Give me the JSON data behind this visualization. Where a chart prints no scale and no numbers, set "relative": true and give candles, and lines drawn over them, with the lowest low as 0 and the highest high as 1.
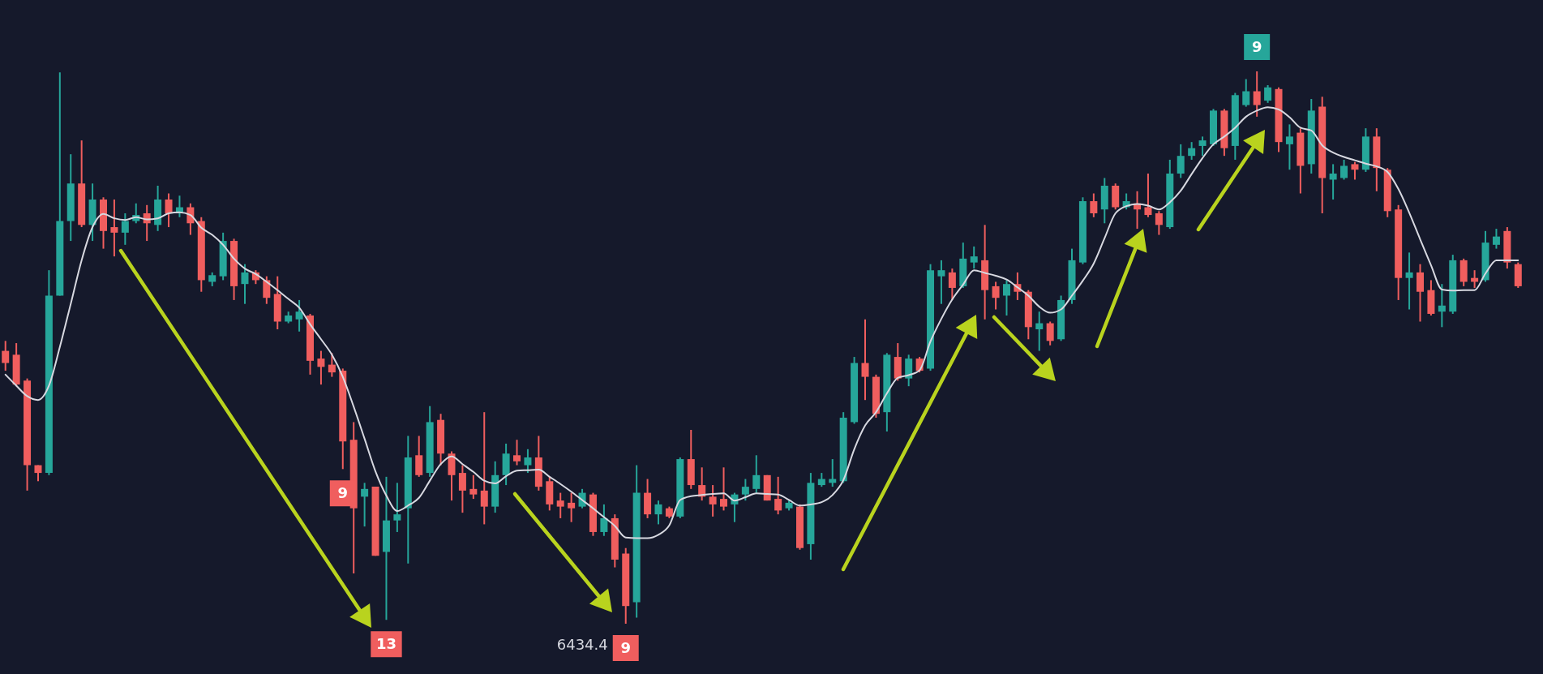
{
  "chart_data": {
    "type": "candlestick",
    "relative": true,
    "tick_labels": false,
    "categories": [
      null,
      null,
      null,
      null,
      null,
      null,
      null,
      null,
      null,
      null,
      null,
      null,
      null,
      null,
      null,
      null,
      null,
      null,
      null,
      null,
      null,
      null,
      null,
      null,
      null,
      null,
      null,
      null,
      null,
      null,
      null,
      null,
      null,
      null,
      null,
      null,
      null,
      null,
      null,
      null,
      null,
      null,
      null,
      null,
      null,
      null,
      null,
      null,
      null,
      null,
      null,
      null,
      null,
      null,
      null,
      null,
      null,
      null,
      null,
      null,
      null,
      null,
      null,
      null,
      null,
      null,
      null,
      null,
      null,
      null,
      null,
      null,
      null,
      null,
      null,
      null,
      null,
      null,
      null,
      null,
      null,
      null,
      null,
      null,
      null,
      null,
      null,
      null,
      null,
      null,
      null,
      null,
      null,
      null,
      null,
      null,
      null,
      null,
      null,
      null,
      null,
      null,
      null,
      null,
      null,
      null,
      null,
      null,
      null,
      null,
      null,
      null,
      null,
      null,
      null,
      null,
      null,
      null,
      null,
      null,
      null,
      null,
      null,
      null,
      null,
      null,
      null,
      null,
      null,
      null,
      null,
      null,
      null,
      null,
      null,
      null,
      null,
      null,
      null,
      null
    ],
    "ohlc": [
      [
        0.494,
        0.512,
        0.458,
        0.472
      ],
      [
        0.487,
        0.508,
        0.43,
        0.433
      ],
      [
        0.44,
        0.444,
        0.241,
        0.287
      ],
      [
        0.287,
        0.287,
        0.258,
        0.273
      ],
      [
        0.273,
        0.64,
        0.269,
        0.594
      ],
      [
        0.594,
        0.998,
        0.594,
        0.729
      ],
      [
        0.729,
        0.85,
        0.693,
        0.797
      ],
      [
        0.797,
        0.875,
        0.718,
        0.722
      ],
      [
        0.722,
        0.797,
        0.693,
        0.768
      ],
      [
        0.768,
        0.772,
        0.679,
        0.711
      ],
      [
        0.718,
        0.768,
        0.665,
        0.708
      ],
      [
        0.708,
        0.743,
        0.686,
        0.729
      ],
      [
        0.729,
        0.761,
        0.725,
        0.74
      ],
      [
        0.743,
        0.758,
        0.693,
        0.725
      ],
      [
        0.722,
        0.793,
        0.711,
        0.768
      ],
      [
        0.768,
        0.779,
        0.718,
        0.743
      ],
      [
        0.743,
        0.775,
        0.736,
        0.754
      ],
      [
        0.754,
        0.761,
        0.704,
        0.725
      ],
      [
        0.729,
        0.736,
        0.601,
        0.622
      ],
      [
        0.619,
        0.636,
        0.611,
        0.631
      ],
      [
        0.629,
        0.708,
        0.622,
        0.693
      ],
      [
        0.693,
        0.697,
        0.586,
        0.611
      ],
      [
        0.615,
        0.651,
        0.579,
        0.636
      ],
      [
        0.636,
        0.64,
        0.615,
        0.622
      ],
      [
        0.622,
        0.629,
        0.579,
        0.59
      ],
      [
        0.597,
        0.629,
        0.533,
        0.547
      ],
      [
        0.547,
        0.565,
        0.544,
        0.558
      ],
      [
        0.551,
        0.586,
        0.529,
        0.565
      ],
      [
        0.558,
        0.561,
        0.451,
        0.476
      ],
      [
        0.48,
        0.494,
        0.433,
        0.465
      ],
      [
        0.469,
        0.49,
        0.447,
        0.455
      ],
      [
        0.458,
        0.462,
        0.28,
        0.33
      ],
      [
        0.333,
        0.365,
        0.091,
        0.209
      ],
      [
        0.23,
        0.255,
        0.176,
        0.244
      ],
      [
        0.248,
        0.248,
        0.123,
        0.123
      ],
      [
        0.13,
        0.266,
        0.007,
        0.187
      ],
      [
        0.187,
        0.255,
        0.166,
        0.198
      ],
      [
        0.209,
        0.34,
        0.109,
        0.301
      ],
      [
        0.305,
        0.34,
        0.266,
        0.269
      ],
      [
        0.273,
        0.394,
        0.266,
        0.365
      ],
      [
        0.369,
        0.38,
        0.287,
        0.308
      ],
      [
        0.308,
        0.312,
        0.223,
        0.269
      ],
      [
        0.273,
        0.287,
        0.201,
        0.241
      ],
      [
        0.244,
        0.269,
        0.226,
        0.234
      ],
      [
        0.241,
        0.383,
        0.18,
        0.212
      ],
      [
        0.212,
        0.294,
        0.201,
        0.269
      ],
      [
        0.269,
        0.326,
        0.251,
        0.308
      ],
      [
        0.305,
        0.333,
        0.287,
        0.294
      ],
      [
        0.287,
        0.316,
        0.273,
        0.301
      ],
      [
        0.301,
        0.34,
        0.241,
        0.248
      ],
      [
        0.258,
        0.266,
        0.205,
        0.216
      ],
      [
        0.223,
        0.237,
        0.191,
        0.212
      ],
      [
        0.219,
        0.237,
        0.184,
        0.209
      ],
      [
        0.212,
        0.244,
        0.209,
        0.237
      ],
      [
        0.234,
        0.237,
        0.159,
        0.166
      ],
      [
        0.166,
        0.216,
        0.159,
        0.191
      ],
      [
        0.191,
        0.198,
        0.102,
        0.116
      ],
      [
        0.127,
        0.137,
        0,
        0.032
      ],
      [
        0.039,
        0.287,
        0.011,
        0.237
      ],
      [
        0.237,
        0.262,
        0.191,
        0.198
      ],
      [
        0.198,
        0.223,
        0.18,
        0.216
      ],
      [
        0.209,
        0.212,
        0.191,
        0.194
      ],
      [
        0.194,
        0.301,
        0.191,
        0.298
      ],
      [
        0.298,
        0.351,
        0.244,
        0.251
      ],
      [
        0.251,
        0.283,
        0.223,
        0.23
      ],
      [
        0.23,
        0.251,
        0.194,
        0.216
      ],
      [
        0.226,
        0.283,
        0.205,
        0.212
      ],
      [
        0.216,
        0.237,
        0.184,
        0.234
      ],
      [
        0.234,
        0.262,
        0.223,
        0.248
      ],
      [
        0.244,
        0.305,
        0.237,
        0.269
      ],
      [
        0.269,
        0.269,
        0.223,
        0.223
      ],
      [
        0.226,
        0.266,
        0.198,
        0.205
      ],
      [
        0.209,
        0.223,
        0.205,
        0.219
      ],
      [
        0.212,
        0.216,
        0.134,
        0.137
      ],
      [
        0.144,
        0.273,
        0.116,
        0.255
      ],
      [
        0.251,
        0.273,
        0.248,
        0.262
      ],
      [
        0.255,
        0.298,
        0.248,
        0.262
      ],
      [
        0.258,
        0.383,
        0.255,
        0.373
      ],
      [
        0.365,
        0.483,
        0.362,
        0.472
      ],
      [
        0.472,
        0.551,
        0.405,
        0.447
      ],
      [
        0.447,
        0.451,
        0.373,
        0.38
      ],
      [
        0.383,
        0.49,
        0.348,
        0.487
      ],
      [
        0.483,
        0.508,
        0.44,
        0.444
      ],
      [
        0.444,
        0.487,
        0.43,
        0.48
      ],
      [
        0.48,
        0.483,
        0.455,
        0.458
      ],
      [
        0.462,
        0.651,
        0.458,
        0.64
      ],
      [
        0.629,
        0.658,
        0.579,
        0.64
      ],
      [
        0.636,
        0.643,
        0.586,
        0.608
      ],
      [
        0.611,
        0.69,
        0.608,
        0.661
      ],
      [
        0.654,
        0.683,
        0.643,
        0.665
      ],
      [
        0.658,
        0.722,
        0.551,
        0.604
      ],
      [
        0.611,
        0.619,
        0.569,
        0.59
      ],
      [
        0.594,
        0.622,
        0.558,
        0.615
      ],
      [
        0.615,
        0.636,
        0.586,
        0.601
      ],
      [
        0.601,
        0.604,
        0.515,
        0.537
      ],
      [
        0.533,
        0.565,
        0.494,
        0.544
      ],
      [
        0.544,
        0.547,
        0.504,
        0.512
      ],
      [
        0.515,
        0.594,
        0.512,
        0.586
      ],
      [
        0.586,
        0.679,
        0.579,
        0.658
      ],
      [
        0.654,
        0.772,
        0.651,
        0.765
      ],
      [
        0.765,
        0.779,
        0.736,
        0.743
      ],
      [
        0.75,
        0.807,
        0.725,
        0.793
      ],
      [
        0.793,
        0.797,
        0.75,
        0.754
      ],
      [
        0.754,
        0.779,
        0.75,
        0.765
      ],
      [
        0.761,
        0.783,
        0.715,
        0.75
      ],
      [
        0.754,
        0.815,
        0.736,
        0.74
      ],
      [
        0.743,
        0.747,
        0.704,
        0.722
      ],
      [
        0.718,
        0.84,
        0.715,
        0.815
      ],
      [
        0.815,
        0.868,
        0.807,
        0.847
      ],
      [
        0.847,
        0.872,
        0.84,
        0.861
      ],
      [
        0.865,
        0.882,
        0.847,
        0.875
      ],
      [
        0.868,
        0.932,
        0.865,
        0.929
      ],
      [
        0.929,
        0.932,
        0.847,
        0.861
      ],
      [
        0.865,
        0.961,
        0.84,
        0.957
      ],
      [
        0.939,
        0.986,
        0.936,
        0.964
      ],
      [
        0.964,
        1,
        0.918,
        0.939
      ],
      [
        0.947,
        0.975,
        0.943,
        0.971
      ],
      [
        0.968,
        0.971,
        0.854,
        0.872
      ],
      [
        0.868,
        0.904,
        0.822,
        0.882
      ],
      [
        0.889,
        0.897,
        0.779,
        0.829
      ],
      [
        0.832,
        0.95,
        0.815,
        0.929
      ],
      [
        0.936,
        0.954,
        0.743,
        0.807
      ],
      [
        0.804,
        0.832,
        0.768,
        0.815
      ],
      [
        0.807,
        0.84,
        0.804,
        0.829
      ],
      [
        0.832,
        0.836,
        0.804,
        0.822
      ],
      [
        0.822,
        0.897,
        0.818,
        0.882
      ],
      [
        0.882,
        0.897,
        0.783,
        0.825
      ],
      [
        0.822,
        0.825,
        0.736,
        0.747
      ],
      [
        0.75,
        0.758,
        0.586,
        0.626
      ],
      [
        0.626,
        0.672,
        0.569,
        0.636
      ],
      [
        0.636,
        0.651,
        0.547,
        0.601
      ],
      [
        0.604,
        0.622,
        0.558,
        0.561
      ],
      [
        0.565,
        0.615,
        0.537,
        0.576
      ],
      [
        0.565,
        0.668,
        0.561,
        0.658
      ],
      [
        0.658,
        0.661,
        0.611,
        0.619
      ],
      [
        0.626,
        0.64,
        0.608,
        0.619
      ],
      [
        0.622,
        0.711,
        0.619,
        0.69
      ],
      [
        0.686,
        0.715,
        0.679,
        0.701
      ],
      [
        0.711,
        0.718,
        0.643,
        0.654
      ],
      [
        0.651,
        0.654,
        0.608,
        0.611
      ]
    ],
    "colors": [
      "#f05e5e",
      "#f05e5e",
      "#f05e5e",
      "#f05e5e",
      "#26a69a",
      "#26a69a",
      "#26a69a",
      "#f05e5e",
      "#26a69a",
      "#f05e5e",
      "#f05e5e",
      "#26a69a",
      "#26a69a",
      "#f05e5e",
      "#26a69a",
      "#f05e5e",
      "#26a69a",
      "#f05e5e",
      "#f05e5e",
      "#26a69a",
      "#26a69a",
      "#f05e5e",
      "#26a69a",
      "#f05e5e",
      "#f05e5e",
      "#f05e5e",
      "#26a69a",
      "#26a69a",
      "#f05e5e",
      "#f05e5e",
      "#f05e5e",
      "#f05e5e",
      "#f05e5e",
      "#26a69a",
      "#f05e5e",
      "#26a69a",
      "#26a69a",
      "#26a69a",
      "#f05e5e",
      "#26a69a",
      "#f05e5e",
      "#f05e5e",
      "#f05e5e",
      "#f05e5e",
      "#f05e5e",
      "#26a69a",
      "#26a69a",
      "#f05e5e",
      "#26a69a",
      "#f05e5e",
      "#f05e5e",
      "#f05e5e",
      "#f05e5e",
      "#26a69a",
      "#f05e5e",
      "#26a69a",
      "#f05e5e",
      "#f05e5e",
      "#26a69a",
      "#f05e5e",
      "#26a69a",
      "#f05e5e",
      "#26a69a",
      "#f05e5e",
      "#f05e5e",
      "#f05e5e",
      "#f05e5e",
      "#26a69a",
      "#26a69a",
      "#26a69a",
      "#f05e5e",
      "#f05e5e",
      "#26a69a",
      "#f05e5e",
      "#26a69a",
      "#26a69a",
      "#26a69a",
      "#26a69a",
      "#26a69a",
      "#f05e5e",
      "#f05e5e",
      "#26a69a",
      "#f05e5e",
      "#26a69a",
      "#f05e5e",
      "#26a69a",
      "#26a69a",
      "#f05e5e",
      "#26a69a",
      "#26a69a",
      "#f05e5e",
      "#f05e5e",
      "#26a69a",
      "#f05e5e",
      "#f05e5e",
      "#26a69a",
      "#f05e5e",
      "#26a69a",
      "#26a69a",
      "#26a69a",
      "#f05e5e",
      "#26a69a",
      "#f05e5e",
      "#26a69a",
      "#f05e5e",
      "#f05e5e",
      "#f05e5e",
      "#26a69a",
      "#26a69a",
      "#26a69a",
      "#26a69a",
      "#26a69a",
      "#f05e5e",
      "#26a69a",
      "#26a69a",
      "#f05e5e",
      "#26a69a",
      "#f05e5e",
      "#26a69a",
      "#f05e5e",
      "#26a69a",
      "#f05e5e",
      "#26a69a",
      "#26a69a",
      "#f05e5e",
      "#26a69a",
      "#f05e5e",
      "#f05e5e",
      "#f05e5e",
      "#26a69a",
      "#f05e5e",
      "#f05e5e",
      "#26a69a",
      "#26a69a",
      "#f05e5e",
      "#f05e5e",
      "#26a69a",
      "#26a69a",
      "#f05e5e",
      "#f05e5e"
    ],
    "series": [
      {
        "type": "line",
        "color": "#d7d8e0",
        "values": [
          0.451,
          0.431,
          0.412,
          0.405,
          0.431,
          0.501,
          0.579,
          0.658,
          0.718,
          0.742,
          0.734,
          0.731,
          0.736,
          0.732,
          0.734,
          0.743,
          0.745,
          0.74,
          0.717,
          0.704,
          0.686,
          0.661,
          0.643,
          0.633,
          0.619,
          0.604,
          0.588,
          0.572,
          0.542,
          0.515,
          0.487,
          0.447,
          0.393,
          0.335,
          0.276,
          0.232,
          0.204,
          0.214,
          0.228,
          0.259,
          0.289,
          0.303,
          0.289,
          0.275,
          0.259,
          0.254,
          0.267,
          0.277,
          0.278,
          0.279,
          0.266,
          0.253,
          0.239,
          0.224,
          0.209,
          0.193,
          0.177,
          0.156,
          0.155,
          0.155,
          0.161,
          0.178,
          0.224,
          0.231,
          0.233,
          0.235,
          0.236,
          0.223,
          0.229,
          0.236,
          0.235,
          0.234,
          0.224,
          0.214,
          0.216,
          0.22,
          0.233,
          0.26,
          0.316,
          0.359,
          0.383,
          0.417,
          0.445,
          0.45,
          0.459,
          0.511,
          0.552,
          0.587,
          0.614,
          0.64,
          0.635,
          0.63,
          0.623,
          0.609,
          0.594,
          0.574,
          0.563,
          0.569,
          0.594,
          0.621,
          0.652,
          0.698,
          0.743,
          0.756,
          0.76,
          0.757,
          0.75,
          0.763,
          0.784,
          0.814,
          0.843,
          0.868,
          0.882,
          0.898,
          0.918,
          0.929,
          0.935,
          0.931,
          0.917,
          0.898,
          0.893,
          0.866,
          0.853,
          0.845,
          0.839,
          0.833,
          0.828,
          0.818,
          0.787,
          0.744,
          0.696,
          0.649,
          0.605,
          0.603,
          0.604,
          0.604,
          0.634,
          0.658,
          0.658,
          0.658
        ]
      }
    ],
    "annotations": [
      {
        "text": "9",
        "y": 0.28
      },
      {
        "text": "13",
        "y": 0.007
      },
      "6434.4",
      {
        "text": "9",
        "y": 0
      },
      {
        "text": "9",
        "y": 1
      }
    ]
  }
}
